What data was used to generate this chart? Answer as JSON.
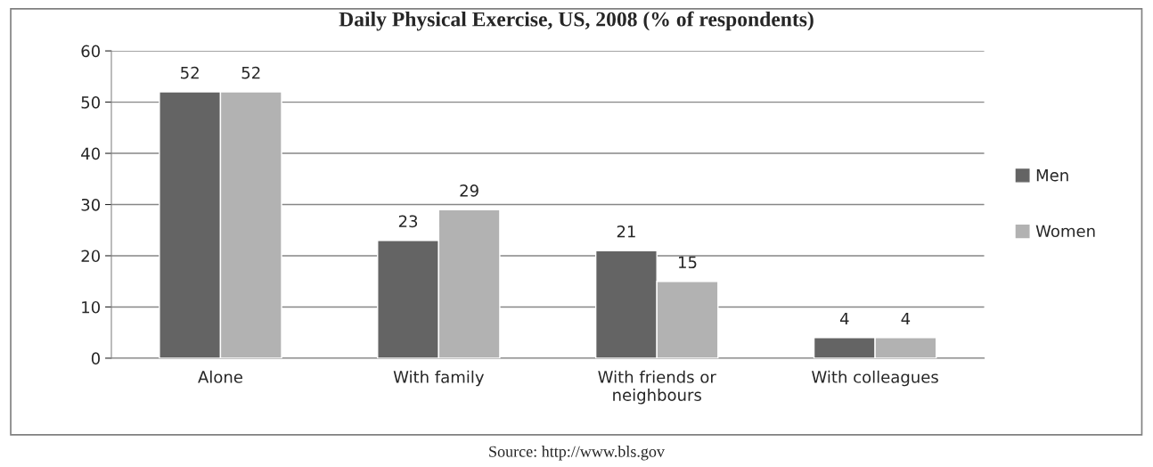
{
  "chart_data": {
    "type": "bar",
    "title": "Daily Physical Exercise, US, 2008 (% of respondents)",
    "categories": [
      "Alone",
      "With family",
      "With friends or\nneighbours",
      "With colleagues"
    ],
    "series": [
      {
        "name": "Men",
        "color": "#646464",
        "values": [
          52,
          23,
          21,
          4
        ]
      },
      {
        "name": "Women",
        "color": "#b2b2b2",
        "values": [
          52,
          29,
          15,
          4
        ]
      }
    ],
    "ylim": [
      0,
      60
    ],
    "yticks": [
      0,
      10,
      20,
      30,
      40,
      50,
      60
    ],
    "grid": "y",
    "legend": "right",
    "data_labels": true,
    "annotations": [
      "Source: http://www.bls.gov"
    ]
  }
}
